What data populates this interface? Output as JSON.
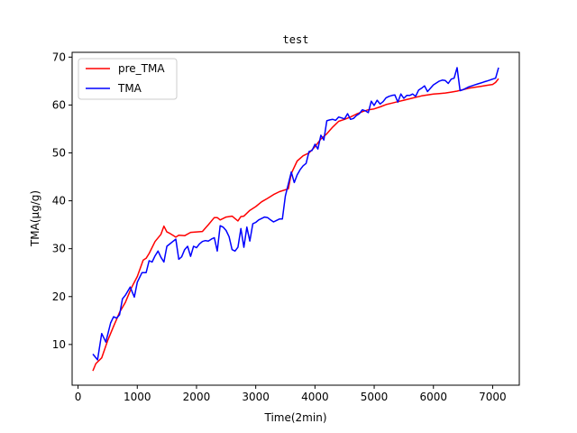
{
  "chart_data": {
    "type": "line",
    "title": "test",
    "xlabel": "Time(2min)",
    "ylabel": "TMA(μg/g)",
    "xlim": [
      -100,
      7450
    ],
    "ylim": [
      1.5,
      71
    ],
    "xticks": [
      0,
      1000,
      2000,
      3000,
      4000,
      5000,
      6000,
      7000
    ],
    "yticks": [
      10,
      20,
      30,
      40,
      50,
      60,
      70
    ],
    "xtick_labels": [
      "0",
      "1000",
      "2000",
      "3000",
      "4000",
      "5000",
      "6000",
      "7000"
    ],
    "ytick_labels": [
      "10",
      "20",
      "30",
      "40",
      "50",
      "60",
      "70"
    ],
    "grid": false,
    "legend_position": "upper left",
    "series": [
      {
        "name": "pre_TMA",
        "color": "#ff0000",
        "x": [
          250,
          300,
          400,
          500,
          600,
          700,
          800,
          900,
          1000,
          1100,
          1150,
          1200,
          1300,
          1400,
          1450,
          1500,
          1550,
          1600,
          1650,
          1700,
          1800,
          1900,
          2000,
          2100,
          2200,
          2300,
          2350,
          2400,
          2500,
          2600,
          2700,
          2750,
          2800,
          2900,
          3000,
          3100,
          3200,
          3300,
          3400,
          3550,
          3600,
          3700,
          3800,
          3900,
          4000,
          4100,
          4200,
          4300,
          4400,
          4500,
          4600,
          4700,
          4800,
          4900,
          5000,
          5100,
          5200,
          5300,
          5400,
          5500,
          5600,
          5700,
          5800,
          5900,
          6000,
          6100,
          6200,
          6300,
          6400,
          6500,
          6600,
          6700,
          6800,
          6900,
          7000,
          7050,
          7100
        ],
        "y": [
          4.5,
          6,
          7.2,
          10.8,
          13.8,
          16.7,
          18.8,
          21.8,
          24.2,
          27.6,
          28,
          29,
          31.5,
          33,
          34.7,
          33.5,
          33.2,
          32.8,
          32.4,
          32.8,
          32.7,
          33.4,
          33.5,
          33.6,
          35,
          36.5,
          36.5,
          36,
          36.6,
          36.8,
          35.8,
          36.7,
          36.8,
          38,
          38.8,
          39.8,
          40.5,
          41.3,
          41.9,
          42.5,
          45.7,
          48.3,
          49.4,
          50,
          51.3,
          52.9,
          54,
          55.4,
          56.6,
          57,
          57.5,
          58.1,
          58.6,
          59,
          59.2,
          59.6,
          60.1,
          60.4,
          60.7,
          61,
          61.3,
          61.6,
          61.9,
          62.1,
          62.3,
          62.4,
          62.5,
          62.7,
          62.9,
          63.2,
          63.5,
          63.7,
          63.9,
          64.1,
          64.3,
          64.7,
          65.5
        ]
      },
      {
        "name": "TMA",
        "color": "#0000ff",
        "x": [
          250,
          330,
          400,
          470,
          550,
          600,
          650,
          700,
          750,
          800,
          880,
          950,
          1000,
          1080,
          1150,
          1200,
          1250,
          1300,
          1350,
          1400,
          1450,
          1500,
          1550,
          1600,
          1650,
          1700,
          1750,
          1800,
          1850,
          1900,
          1950,
          2000,
          2050,
          2100,
          2150,
          2200,
          2250,
          2300,
          2350,
          2400,
          2450,
          2500,
          2550,
          2600,
          2650,
          2700,
          2750,
          2800,
          2850,
          2900,
          2950,
          3000,
          3050,
          3100,
          3150,
          3200,
          3250,
          3300,
          3350,
          3400,
          3450,
          3500,
          3550,
          3600,
          3650,
          3700,
          3750,
          3800,
          3850,
          3900,
          3950,
          4000,
          4050,
          4100,
          4150,
          4200,
          4250,
          4300,
          4350,
          4400,
          4450,
          4500,
          4550,
          4600,
          4650,
          4700,
          4750,
          4800,
          4850,
          4900,
          4950,
          5000,
          5050,
          5100,
          5150,
          5200,
          5250,
          5300,
          5350,
          5400,
          5450,
          5500,
          5550,
          5600,
          5650,
          5700,
          5750,
          5800,
          5850,
          5900,
          5950,
          6000,
          6050,
          6100,
          6150,
          6200,
          6250,
          6300,
          6350,
          6400,
          6450,
          6500,
          6550,
          6600,
          6650,
          6700,
          6750,
          6800,
          6850,
          6900,
          6950,
          7000,
          7050,
          7100
        ],
        "y": [
          8,
          6.8,
          12.3,
          10.5,
          14.5,
          15.8,
          15.5,
          16.2,
          19.5,
          20.3,
          22,
          19.9,
          23,
          25,
          25,
          27.5,
          27.2,
          28.5,
          29.5,
          28.2,
          27.2,
          30.5,
          31,
          31.5,
          32,
          27.8,
          28.3,
          29.8,
          30.5,
          28.4,
          30.5,
          30.2,
          31,
          31.5,
          31.7,
          31.6,
          32,
          32.3,
          29.5,
          34.8,
          34.5,
          33.8,
          32.5,
          29.8,
          29.5,
          30.3,
          34.2,
          30.3,
          34.5,
          31.6,
          35.2,
          35.5,
          36,
          36.3,
          36.6,
          36.5,
          36,
          35.6,
          35.9,
          36.2,
          36.2,
          41,
          43.5,
          46,
          43.8,
          45.4,
          46.5,
          47.3,
          47.8,
          50.3,
          50.5,
          51.8,
          50.8,
          53.7,
          52.7,
          56.7,
          56.9,
          57,
          56.8,
          57.5,
          57.3,
          57.1,
          58.2,
          57,
          57.2,
          57.8,
          58.2,
          59.0,
          58.8,
          58.4,
          60.8,
          59.9,
          61,
          60.2,
          60.7,
          61.5,
          61.8,
          62,
          62.1,
          60.6,
          62.3,
          61.4,
          62,
          62,
          62.3,
          61.8,
          63.1,
          63.5,
          64,
          62.8,
          63.5,
          64.2,
          64.6,
          65,
          65.2,
          65.1,
          64.5,
          65.4,
          65.6,
          67.8,
          63,
          63.2,
          63.5,
          63.8,
          64.0,
          64.2,
          64.4,
          64.6,
          64.8,
          65.0,
          65.2,
          65.4,
          65.6,
          67.8
        ]
      }
    ]
  }
}
